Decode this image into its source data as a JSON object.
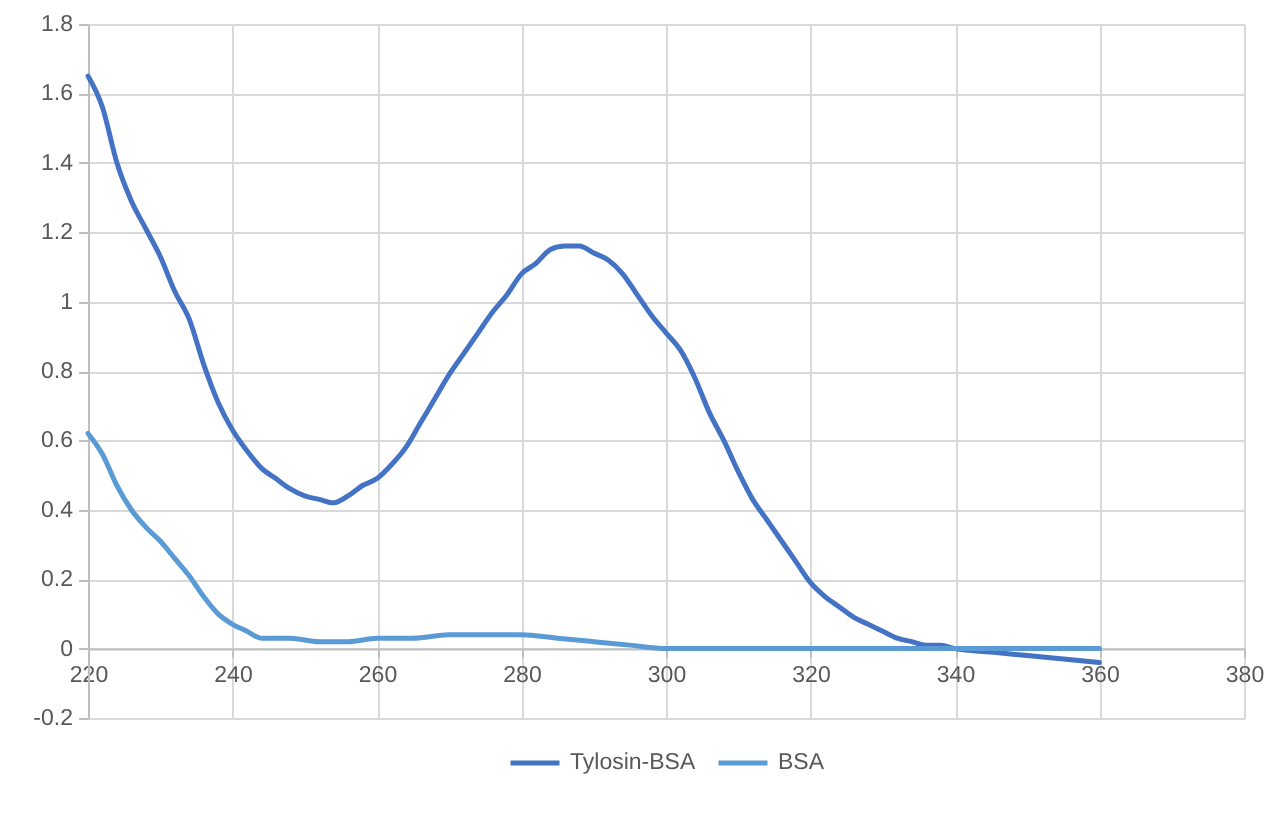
{
  "chart_data": {
    "type": "line",
    "series": [
      {
        "name": "Tylosin-BSA",
        "color": "#4472c4",
        "x": [
          220,
          222,
          224,
          226,
          228,
          230,
          232,
          234,
          236,
          238,
          240,
          242,
          244,
          246,
          248,
          250,
          252,
          254,
          256,
          258,
          260,
          262,
          264,
          266,
          268,
          270,
          272,
          274,
          276,
          278,
          280,
          282,
          284,
          286,
          288,
          290,
          292,
          294,
          296,
          298,
          300,
          302,
          304,
          306,
          308,
          310,
          312,
          314,
          316,
          318,
          320,
          322,
          324,
          326,
          328,
          330,
          332,
          334,
          336,
          338,
          340,
          345,
          350,
          355,
          360
        ],
        "values": [
          1.65,
          1.56,
          1.4,
          1.29,
          1.21,
          1.13,
          1.03,
          0.95,
          0.82,
          0.71,
          0.63,
          0.57,
          0.52,
          0.49,
          0.46,
          0.44,
          0.43,
          0.42,
          0.44,
          0.47,
          0.49,
          0.53,
          0.58,
          0.65,
          0.72,
          0.79,
          0.85,
          0.91,
          0.97,
          1.02,
          1.08,
          1.11,
          1.15,
          1.16,
          1.16,
          1.14,
          1.12,
          1.08,
          1.02,
          0.96,
          0.91,
          0.86,
          0.78,
          0.68,
          0.6,
          0.51,
          0.43,
          0.37,
          0.31,
          0.25,
          0.19,
          0.15,
          0.12,
          0.09,
          0.07,
          0.05,
          0.03,
          0.02,
          0.01,
          0.01,
          0.0,
          -0.01,
          -0.02,
          -0.03,
          -0.04
        ]
      },
      {
        "name": "BSA",
        "color": "#5b9bd5",
        "x": [
          220,
          222,
          224,
          226,
          228,
          230,
          232,
          234,
          236,
          238,
          240,
          242,
          244,
          248,
          252,
          256,
          260,
          265,
          270,
          275,
          280,
          285,
          290,
          295,
          300,
          310,
          320,
          330,
          340,
          350,
          360
        ],
        "values": [
          0.62,
          0.56,
          0.47,
          0.4,
          0.35,
          0.31,
          0.26,
          0.21,
          0.15,
          0.1,
          0.07,
          0.05,
          0.03,
          0.03,
          0.02,
          0.02,
          0.03,
          0.03,
          0.04,
          0.04,
          0.04,
          0.03,
          0.02,
          0.01,
          0.0,
          0.0,
          0.0,
          0.0,
          0.0,
          0.0,
          0.0
        ]
      }
    ],
    "xlim": [
      220,
      380
    ],
    "xticks": [
      220,
      240,
      260,
      280,
      300,
      320,
      340,
      360,
      380
    ],
    "ylim": [
      -0.2,
      1.8
    ],
    "yticks": [
      -0.2,
      0,
      0.2,
      0.4,
      0.6,
      0.8,
      1,
      1.2,
      1.4,
      1.6,
      1.8
    ],
    "grid": true,
    "legend": "bottom"
  }
}
